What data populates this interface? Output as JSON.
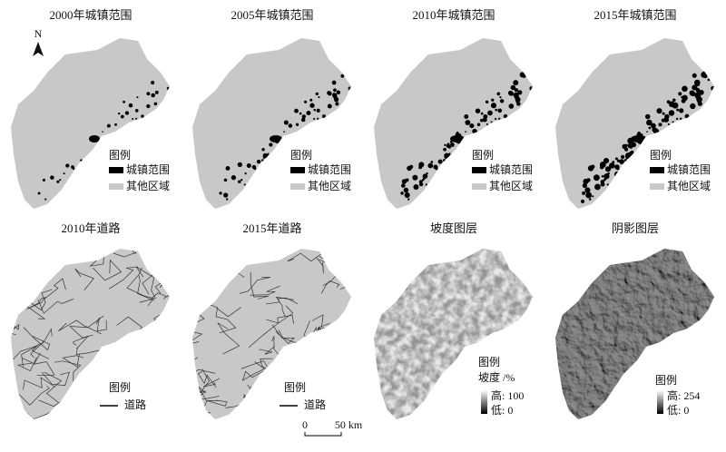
{
  "panels": [
    {
      "title": "2000年城镇范围",
      "legend": {
        "title": "图例",
        "items": [
          "城镇范围",
          "其他区域"
        ]
      }
    },
    {
      "title": "2005年城镇范围",
      "legend": {
        "title": "图例",
        "items": [
          "城镇范围",
          "其他区域"
        ]
      }
    },
    {
      "title": "2010年城镇范围",
      "legend": {
        "title": "图例",
        "items": [
          "城镇范围",
          "其他区域"
        ]
      }
    },
    {
      "title": "2015年城镇范围",
      "legend": {
        "title": "图例",
        "items": [
          "城镇范围",
          "其他区域"
        ]
      }
    },
    {
      "title": "2010年道路",
      "legend": {
        "title": "图例",
        "items": [
          "道路"
        ]
      }
    },
    {
      "title": "2015年道路",
      "legend": {
        "title": "图例",
        "items": [
          "道路"
        ]
      }
    },
    {
      "title": "坡度图层",
      "legend": {
        "title": "图例",
        "subtitle": "坡度 /%",
        "high": "高: 100",
        "low": "低: 0"
      }
    },
    {
      "title": "阴影图层",
      "legend": {
        "title": "图例",
        "high": "高: 254",
        "low": "低: 0"
      }
    }
  ],
  "north": "N",
  "scale_bar": {
    "start": "0",
    "end": "50 km"
  }
}
